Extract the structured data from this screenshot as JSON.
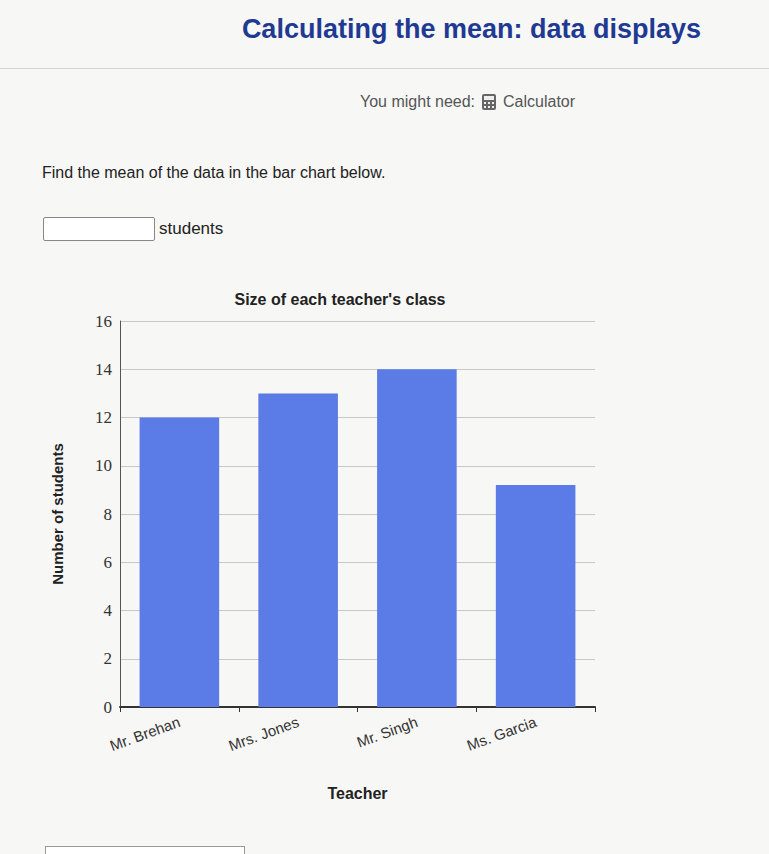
{
  "page": {
    "title": "Calculating the mean: data displays",
    "tool_prompt": "You might need:",
    "tool": "Calculator",
    "question": "Find the mean of the data in the bar chart below.",
    "answer_unit": "students"
  },
  "chart_data": {
    "type": "bar",
    "title": "Size of each teacher's class",
    "x_label": "Teacher",
    "y_label": "Number of students",
    "categories": [
      "Mr. Brehan",
      "Mrs. Jones",
      "Mr. Singh",
      "Ms. Garcia"
    ],
    "values": [
      12,
      13,
      14,
      9.2
    ],
    "color": "#5b7be6",
    "ylim": [
      0,
      16
    ],
    "yticks": [
      0,
      2,
      4,
      6,
      8,
      10,
      12,
      14,
      16
    ],
    "grid": true
  }
}
